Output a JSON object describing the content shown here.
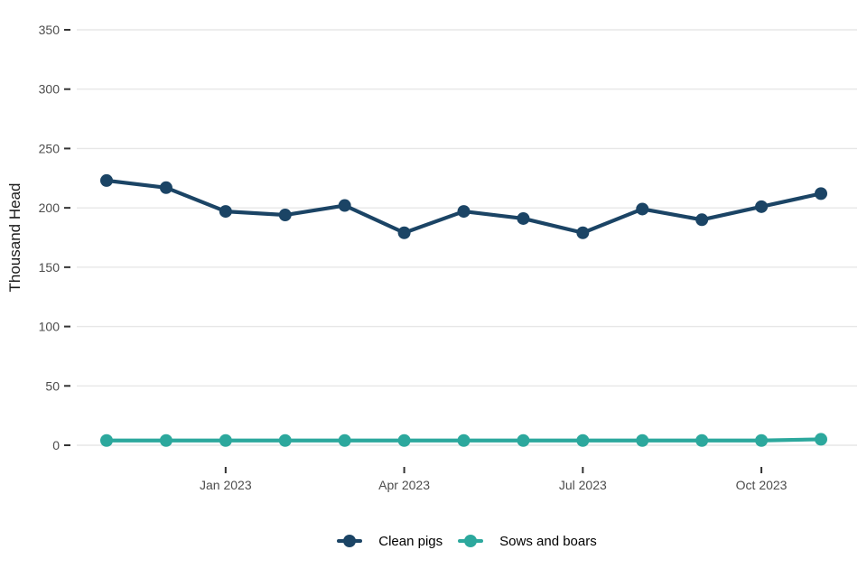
{
  "chart_data": {
    "type": "line",
    "title": "",
    "xlabel": "",
    "ylabel": "Thousand Head",
    "x": [
      "Nov 2022",
      "Dec 2022",
      "Jan 2023",
      "Feb 2023",
      "Mar 2023",
      "Apr 2023",
      "May 2023",
      "Jun 2023",
      "Jul 2023",
      "Aug 2023",
      "Sep 2023",
      "Oct 2023",
      "Nov 2023"
    ],
    "x_tick_labels": [
      {
        "index": 2,
        "label": "Jan 2023"
      },
      {
        "index": 5,
        "label": "Apr 2023"
      },
      {
        "index": 8,
        "label": "Jul 2023"
      },
      {
        "index": 11,
        "label": "Oct 2023"
      }
    ],
    "y_ticks": [
      0,
      50,
      100,
      150,
      200,
      250,
      300,
      350
    ],
    "ylim": [
      0,
      350
    ],
    "grid": true,
    "legend_position": "bottom",
    "series": [
      {
        "name": "Clean pigs",
        "color": "#1b4465",
        "values": [
          223,
          217,
          197,
          194,
          202,
          179,
          197,
          191,
          179,
          199,
          190,
          201,
          212
        ]
      },
      {
        "name": "Sows and boars",
        "color": "#2ca89d",
        "values": [
          4,
          4,
          4,
          4,
          4,
          4,
          4,
          4,
          4,
          4,
          4,
          4,
          5
        ]
      }
    ]
  },
  "colors": {
    "background": "#ffffff",
    "gridline": "#e7e7e7",
    "tick_mark": "#333333",
    "tick_label": "#4d4d4d",
    "axis_title": "#1a1a1a",
    "legend_text": "#000000"
  }
}
